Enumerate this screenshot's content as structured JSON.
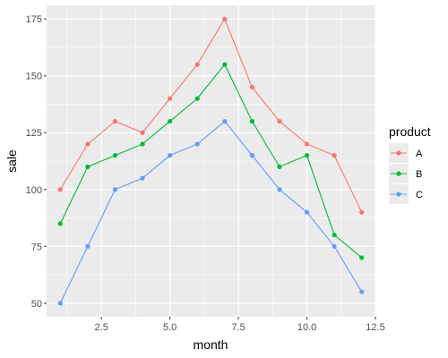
{
  "chart_data": {
    "type": "line",
    "xlabel": "month",
    "ylabel": "sale",
    "xlim": [
      0.5,
      12.5
    ],
    "ylim": [
      44,
      181
    ],
    "x_ticks": [
      2.5,
      5.0,
      7.5,
      10.0,
      12.5
    ],
    "x_tick_labels": [
      "2.5",
      "5.0",
      "7.5",
      "10.0",
      "12.5"
    ],
    "y_ticks": [
      50,
      75,
      100,
      125,
      150,
      175
    ],
    "y_tick_labels": [
      "50",
      "75",
      "100",
      "125",
      "150",
      "175"
    ],
    "grid": true,
    "legend": {
      "title": "product",
      "position": "right"
    },
    "x": [
      1,
      2,
      3,
      4,
      5,
      6,
      7,
      8,
      9,
      10,
      11,
      12
    ],
    "series": [
      {
        "name": "A",
        "color": "#F8766D",
        "values": [
          100,
          120,
          130,
          125,
          140,
          155,
          175,
          145,
          130,
          120,
          115,
          90
        ]
      },
      {
        "name": "B",
        "color": "#00BA38",
        "values": [
          85,
          110,
          115,
          120,
          130,
          140,
          155,
          130,
          110,
          115,
          80,
          70
        ]
      },
      {
        "name": "C",
        "color": "#619CFF",
        "values": [
          50,
          75,
          100,
          105,
          115,
          120,
          130,
          115,
          100,
          90,
          75,
          55
        ]
      }
    ]
  }
}
